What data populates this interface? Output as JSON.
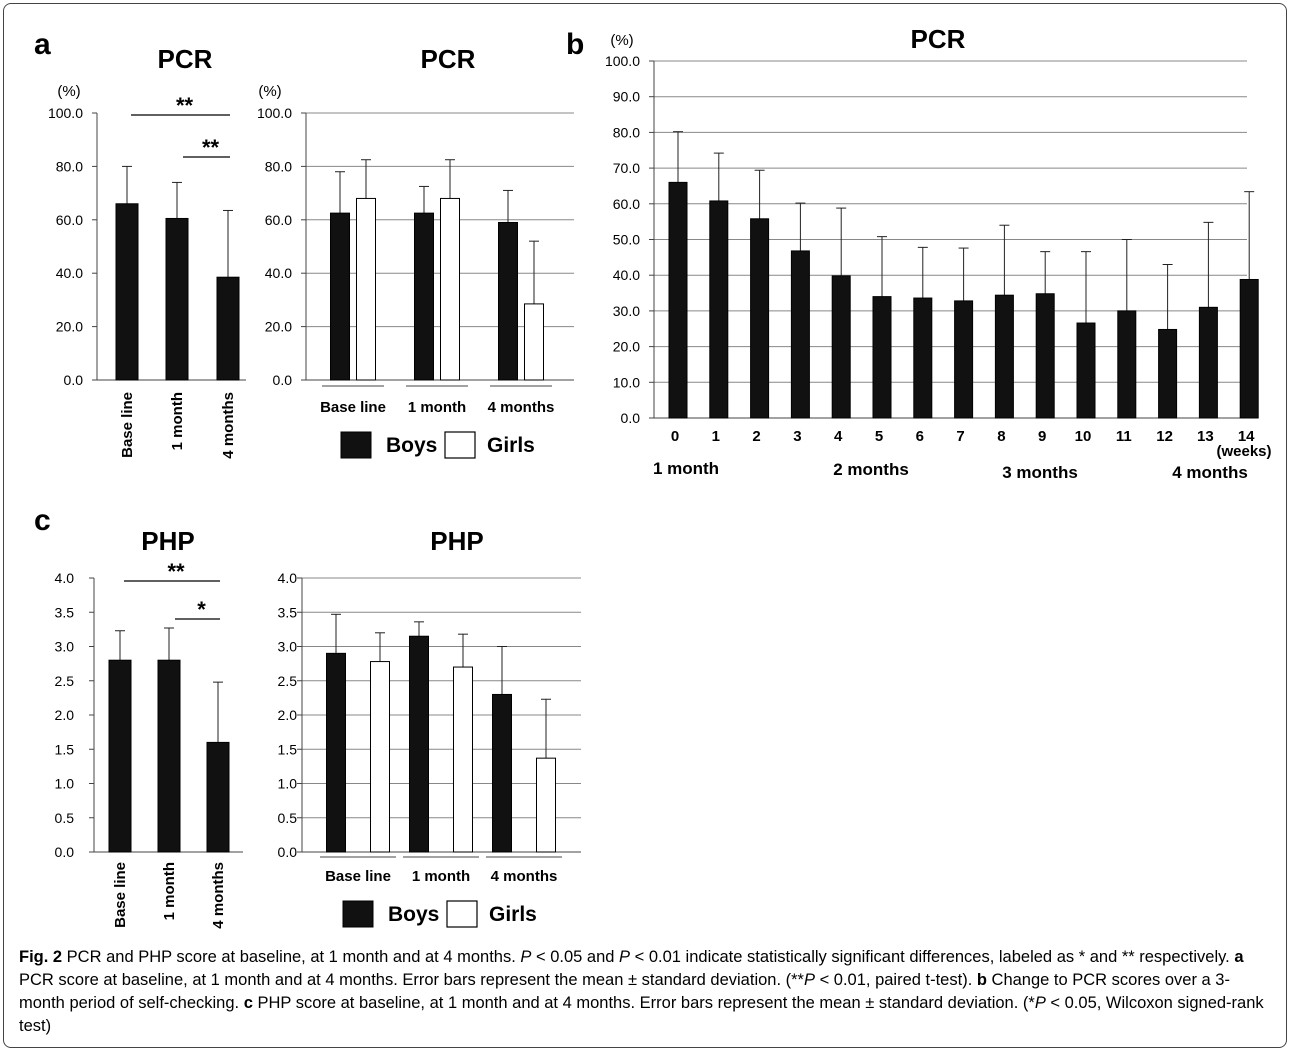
{
  "caption": {
    "fig_label": "Fig. 2",
    "text1": " PCR and PHP score at baseline, at 1 month and at 4 months. ",
    "p1": "P",
    "text2": " < 0.05 and ",
    "p2": "P",
    "text3": " < 0.01 indicate statistically significant differences, labeled as * and ** respectively. ",
    "a": "a",
    "text_a": " PCR score at baseline, at 1 month and at 4 months. Error bars represent the mean ± standard deviation. (**",
    "p3": "P",
    "text_a2": " < 0.01, paired t-test). ",
    "b": "b",
    "text_b": " Change to PCR scores over a 3-month period of self-checking. ",
    "c": "c",
    "text_c": " PHP score at baseline, at 1 month and at 4 months. Error bars represent the mean ± standard deviation. (*",
    "p4": "P",
    "text_c2": " < 0.05, Wilcoxon signed-rank test)"
  },
  "legend": {
    "boys": "Boys",
    "girls": "Girls"
  },
  "colors": {
    "boys": "#111111",
    "girls": "#ffffff",
    "grid": "#888888"
  },
  "panels": {
    "a": {
      "letter": "a"
    },
    "b": {
      "letter": "b"
    },
    "c": {
      "letter": "c"
    }
  },
  "chart_data": [
    {
      "id": "a1",
      "type": "bar",
      "title": "PCR",
      "unit": "(%)",
      "categories": [
        "Base line",
        "1 month",
        "4 months"
      ],
      "values": [
        66,
        60.5,
        38.5
      ],
      "errors": [
        14,
        13.5,
        25
      ],
      "ylim": [
        0,
        100
      ],
      "yticks": [
        "0.0",
        "20.0",
        "40.0",
        "60.0",
        "80.0",
        "100.0"
      ],
      "grid": false,
      "significance": [
        {
          "from": 0,
          "to": 2,
          "label": "**"
        },
        {
          "from": 1,
          "to": 2,
          "label": "**"
        }
      ]
    },
    {
      "id": "a2",
      "type": "bar",
      "title": "PCR",
      "unit": "(%)",
      "categories": [
        "Base line",
        "1 month",
        "4 months"
      ],
      "series": [
        {
          "name": "Boys",
          "values": [
            62.5,
            62.5,
            59
          ],
          "errors": [
            15.5,
            10,
            12
          ]
        },
        {
          "name": "Girls",
          "values": [
            68,
            68,
            28.5
          ],
          "errors": [
            14.5,
            14.5,
            23.5
          ]
        }
      ],
      "ylim": [
        0,
        100
      ],
      "yticks": [
        "0.0",
        "20.0",
        "40.0",
        "60.0",
        "80.0",
        "100.0"
      ],
      "grid": true
    },
    {
      "id": "b",
      "type": "bar",
      "title": "PCR",
      "unit": "(%)",
      "xunit": "(weeks)",
      "categories": [
        "0",
        "1",
        "2",
        "3",
        "4",
        "5",
        "6",
        "7",
        "8",
        "9",
        "10",
        "11",
        "12",
        "13",
        "14"
      ],
      "values": [
        66,
        60.8,
        55.8,
        46.8,
        39.8,
        34,
        33.6,
        32.8,
        34.4,
        34.8,
        26.6,
        30,
        24.8,
        31,
        38.8
      ],
      "errors": [
        14.2,
        13.4,
        13.6,
        13.4,
        19,
        16.8,
        14.2,
        14.8,
        19.6,
        11.8,
        20,
        20,
        18.2,
        23.8,
        24.6
      ],
      "ylim": [
        0,
        100
      ],
      "yticks": [
        "0.0",
        "10.0",
        "20.0",
        "30.0",
        "40.0",
        "50.0",
        "60.0",
        "70.0",
        "80.0",
        "90.0",
        "100.0"
      ],
      "grid": true,
      "period_labels": [
        "1 month",
        "2 months",
        "3 months",
        "4 months"
      ]
    },
    {
      "id": "c1",
      "type": "bar",
      "title": "PHP",
      "categories": [
        "Base line",
        "1 month",
        "4 months"
      ],
      "values": [
        2.8,
        2.8,
        1.6
      ],
      "errors": [
        0.43,
        0.47,
        0.88
      ],
      "ylim": [
        0,
        4
      ],
      "yticks": [
        "0.0",
        "0.5",
        "1.0",
        "1.5",
        "2.0",
        "2.5",
        "3.0",
        "3.5",
        "4.0"
      ],
      "grid": false,
      "significance": [
        {
          "from": 0,
          "to": 2,
          "label": "**"
        },
        {
          "from": 1,
          "to": 2,
          "label": "*"
        }
      ]
    },
    {
      "id": "c2",
      "type": "bar",
      "title": "PHP",
      "categories": [
        "Base line",
        "1 month",
        "4 months"
      ],
      "series": [
        {
          "name": "Boys",
          "values": [
            2.9,
            3.15,
            2.3
          ],
          "errors": [
            0.57,
            0.21,
            0.7
          ]
        },
        {
          "name": "Girls",
          "values": [
            2.78,
            2.7,
            1.37
          ],
          "errors": [
            0.42,
            0.48,
            0.86
          ]
        }
      ],
      "ylim": [
        0,
        4
      ],
      "yticks": [
        "0.0",
        "0.5",
        "1.0",
        "1.5",
        "2.0",
        "2.5",
        "3.0",
        "3.5",
        "4.0"
      ],
      "grid": true
    }
  ]
}
